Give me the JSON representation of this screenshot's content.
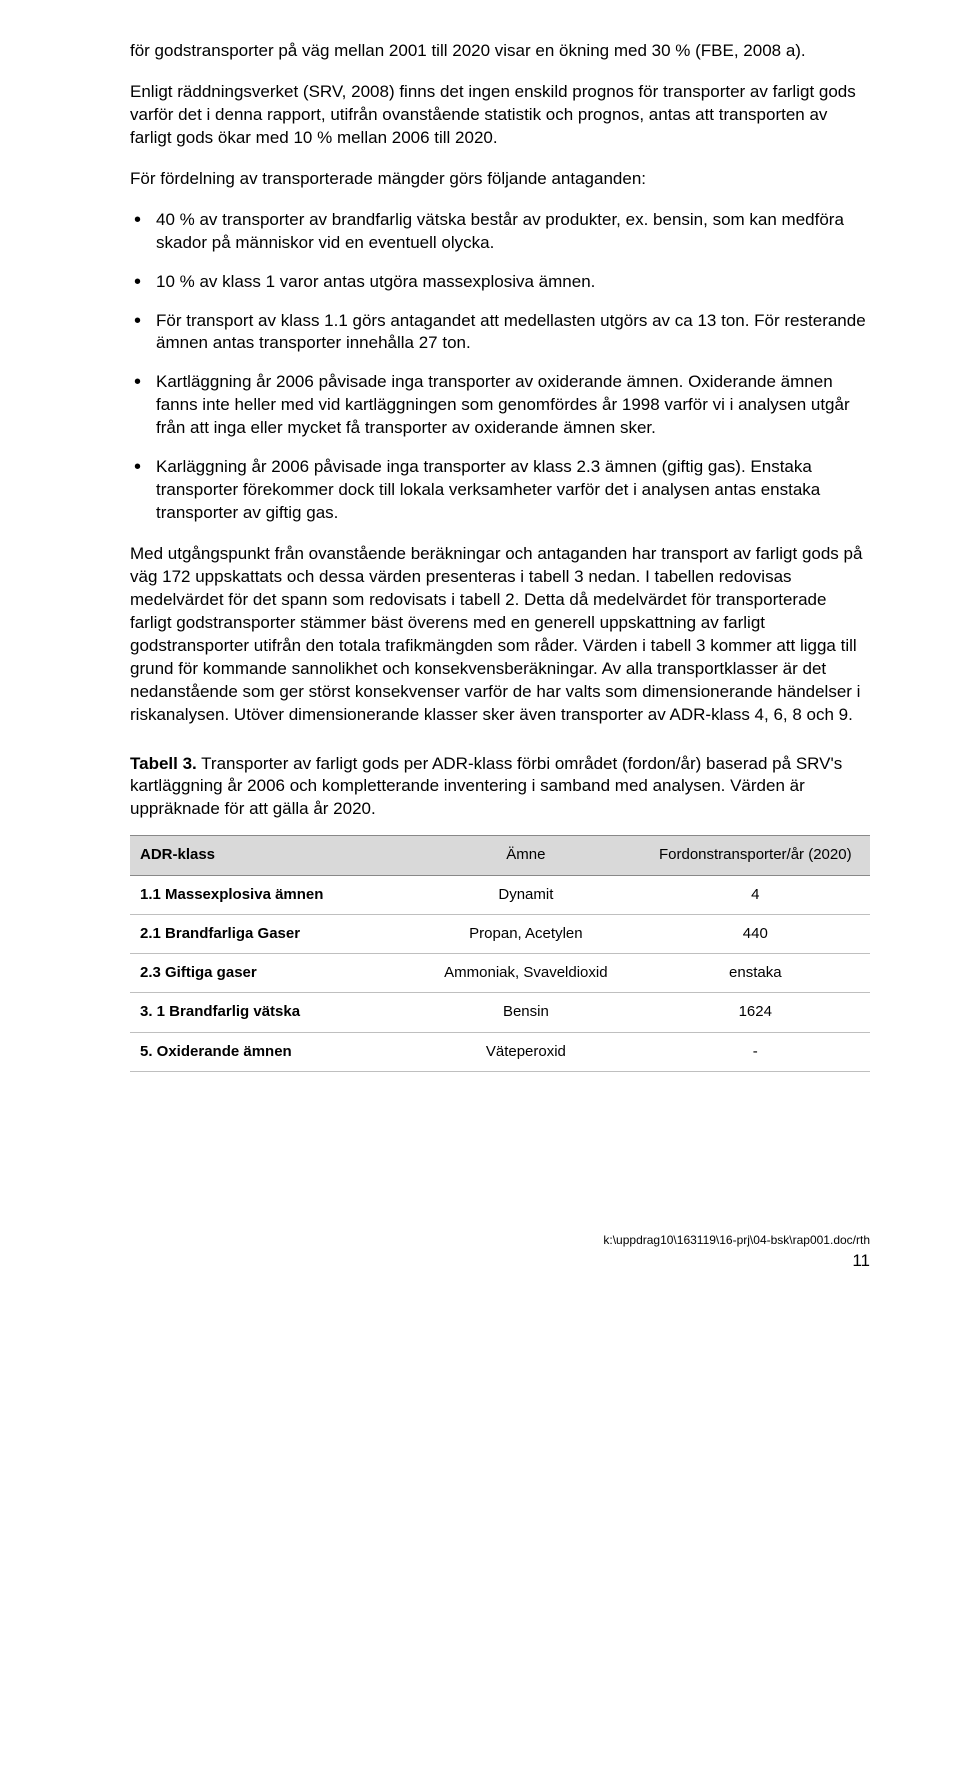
{
  "paragraphs": {
    "p1": "för godstransporter på väg mellan 2001 till 2020 visar en ökning med 30 % (FBE, 2008 a).",
    "p2": "Enligt räddningsverket (SRV, 2008) finns det ingen enskild prognos för transporter av farligt gods varför det i denna rapport, utifrån ovanstående statistik och prognos, antas att transporten av farligt gods ökar med 10 % mellan 2006 till 2020.",
    "p3": "För fördelning av transporterade mängder görs följande antaganden:",
    "p4": "Med utgångspunkt från ovanstående beräkningar och antaganden har transport av farligt gods på väg 172 uppskattats och dessa värden presenteras i tabell 3 nedan. I tabellen redovisas medelvärdet för det spann som redovisats i tabell 2. Detta då medelvärdet för transporterade farligt godstransporter stämmer bäst överens med en generell uppskattning av farligt godstransporter utifrån den totala trafikmängden som råder. Värden i tabell 3 kommer att ligga till grund för kommande sannolikhet och konsekvensberäkningar. Av alla transportklasser är det nedanstående som ger störst konsekvenser varför de har valts som dimensionerande händelser i riskanalysen. Utöver dimensionerande klasser sker även transporter av ADR-klass 4, 6, 8 och 9."
  },
  "list": [
    "40 % av transporter av brandfarlig vätska består av produkter, ex. bensin, som kan medföra skador på människor vid en eventuell olycka.",
    "10 % av klass 1 varor antas utgöra massexplosiva ämnen.",
    "För transport av klass 1.1 görs antagandet att medellasten utgörs av ca 13 ton. För resterande ämnen antas transporter innehålla 27 ton.",
    "Kartläggning år 2006 påvisade inga transporter av oxiderande ämnen. Oxiderande ämnen fanns inte heller med vid kartläggningen som genomfördes år 1998 varför vi i analysen utgår från att inga eller mycket få transporter av oxiderande ämnen sker.",
    "Karläggning år 2006 påvisade inga transporter av klass 2.3 ämnen (giftig gas). Enstaka transporter förekommer dock till lokala verksamheter varför det i analysen antas enstaka transporter av giftig gas."
  ],
  "table": {
    "caption_bold": "Tabell 3.",
    "caption_rest": " Transporter av farligt gods per ADR-klass förbi området (fordon/år) baserad på SRV's kartläggning år 2006 och kompletterande inventering i samband med analysen. Värden är uppräknade för att gälla år 2020.",
    "columns": [
      "ADR-klass",
      "Ämne",
      "Fordonstransporter/år (2020)"
    ],
    "rows": [
      [
        "1.1 Massexplosiva ämnen",
        "Dynamit",
        "4"
      ],
      [
        "2.1 Brandfarliga Gaser",
        "Propan, Acetylen",
        "440"
      ],
      [
        "2.3 Giftiga gaser",
        "Ammoniak, Svaveldioxid",
        "enstaka"
      ],
      [
        "3. 1 Brandfarlig vätska",
        "Bensin",
        "1624"
      ],
      [
        "5. Oxiderande ämnen",
        "Väteperoxid",
        "-"
      ]
    ],
    "header_bg": "#d9d9d9",
    "border_color": "#bfbfbf"
  },
  "footer": {
    "path": "k:\\uppdrag10\\163119\\16-prj\\04-bsk\\rap001.doc/rth",
    "page": "11"
  }
}
